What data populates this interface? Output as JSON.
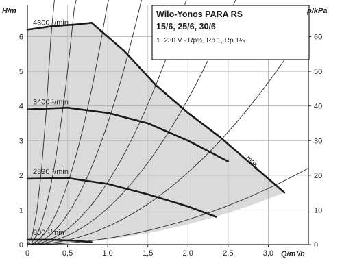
{
  "chart_data": {
    "type": "line",
    "title": "Wilo-Yonos PARA RS",
    "subtitle": "15/6, 25/6, 30/6",
    "note": "1~230 V - Rp½, Rp 1, Rp 1¼",
    "xlabel": "Q/m³/h",
    "ylabel": "H/m",
    "y2label": "p/kPa",
    "xlim": [
      0,
      3.5
    ],
    "ylim": [
      0,
      6.9
    ],
    "y2lim": [
      0,
      69
    ],
    "xticks": [
      "0",
      "0,5",
      "1,0",
      "1,5",
      "2,0",
      "2,5",
      "3,0"
    ],
    "xtick_values": [
      0,
      0.5,
      1.0,
      1.5,
      2.0,
      2.5,
      3.0
    ],
    "yticks": [
      "0",
      "1",
      "2",
      "3",
      "4",
      "5",
      "6"
    ],
    "ytick_values": [
      0,
      1,
      2,
      3,
      4,
      5,
      6
    ],
    "y2ticks": [
      "0",
      "10",
      "20",
      "30",
      "40",
      "50",
      "60"
    ],
    "y2tick_values": [
      0,
      10,
      20,
      30,
      40,
      50,
      60
    ],
    "grid": true,
    "shaded_region": "operating range below max curve",
    "series": [
      {
        "name": "4300 ¹/min",
        "x": [
          0,
          0.3,
          0.6,
          0.8
        ],
        "y": [
          6.2,
          6.3,
          6.35,
          6.4
        ]
      },
      {
        "name": "max.",
        "x": [
          0.8,
          1.2,
          1.6,
          2.0,
          2.4,
          2.8,
          3.2
        ],
        "y": [
          6.4,
          5.6,
          4.6,
          3.8,
          3.1,
          2.3,
          1.5
        ]
      },
      {
        "name": "3400 ¹/min",
        "x": [
          0,
          0.5,
          1.0,
          1.5,
          2.0,
          2.5
        ],
        "y": [
          3.9,
          3.95,
          3.8,
          3.5,
          3.0,
          2.4
        ]
      },
      {
        "name": "2390 ¹/min",
        "x": [
          0,
          0.5,
          1.0,
          1.5,
          2.0,
          2.35
        ],
        "y": [
          1.9,
          1.92,
          1.75,
          1.45,
          1.1,
          0.8
        ]
      },
      {
        "name": "800 ¹/min",
        "x": [
          0,
          0.3,
          0.6,
          0.8
        ],
        "y": [
          0.14,
          0.14,
          0.11,
          0.07
        ]
      }
    ],
    "system_curves": [
      {
        "k": 70
      },
      {
        "k": 20
      },
      {
        "k": 7
      },
      {
        "k": 3.5
      },
      {
        "k": 1.8
      },
      {
        "k": 1.05
      },
      {
        "k": 0.52
      },
      {
        "k": 0.18
      }
    ],
    "max_label": "max."
  }
}
